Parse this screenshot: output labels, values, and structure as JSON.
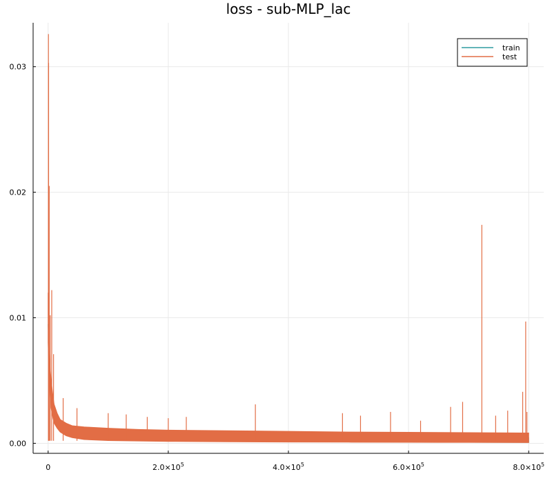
{
  "chart_data": {
    "type": "line",
    "title": "loss - sub-MLP_lac",
    "xlabel": "",
    "ylabel": "",
    "xlim": [
      -25000,
      825000
    ],
    "ylim": [
      -0.0008,
      0.0335
    ],
    "grid": true,
    "legend_position": "top-right",
    "x_ticks": [
      {
        "value": 0,
        "mantissa": "0",
        "exponent": ""
      },
      {
        "value": 200000,
        "mantissa": "2.0×10",
        "exponent": "5"
      },
      {
        "value": 400000,
        "mantissa": "4.0×10",
        "exponent": "5"
      },
      {
        "value": 600000,
        "mantissa": "6.0×10",
        "exponent": "5"
      },
      {
        "value": 800000,
        "mantissa": "8.0×10",
        "exponent": "5"
      }
    ],
    "y_ticks": [
      {
        "value": 0.0,
        "label": "0.00"
      },
      {
        "value": 0.01,
        "label": "0.01"
      },
      {
        "value": 0.02,
        "label": "0.02"
      },
      {
        "value": 0.03,
        "label": "0.03"
      }
    ],
    "series": [
      {
        "name": "train",
        "color": "#2e9ba0",
        "envelope": {
          "x": [
            0,
            2000,
            5000,
            10000,
            20000,
            40000,
            60000,
            100000,
            150000,
            200000,
            300000,
            400000,
            500000,
            600000,
            700000,
            800000
          ],
          "low": [
            0.0095,
            0.0055,
            0.003,
            0.0018,
            0.001,
            0.0006,
            0.00045,
            0.0003,
            0.00025,
            0.00022,
            0.00018,
            0.00015,
            0.00012,
            0.0001,
            8e-05,
            7e-05
          ],
          "high": [
            0.0095,
            0.0065,
            0.004,
            0.0025,
            0.0015,
            0.0011,
            0.001,
            0.0009,
            0.0008,
            0.00075,
            0.0007,
            0.00065,
            0.0006,
            0.00055,
            0.0005,
            0.00045
          ]
        },
        "spikes": []
      },
      {
        "name": "test",
        "color": "#e26d45",
        "envelope": {
          "x": [
            0,
            1000,
            2000,
            3000,
            5000,
            8000,
            10000,
            15000,
            20000,
            30000,
            40000,
            60000,
            100000,
            150000,
            200000,
            300000,
            400000,
            500000,
            600000,
            700000,
            800000
          ],
          "low": [
            0.008,
            0.0065,
            0.005,
            0.004,
            0.0028,
            0.002,
            0.0016,
            0.0012,
            0.0009,
            0.0006,
            0.00045,
            0.0003,
            0.00022,
            0.00018,
            0.00015,
            0.00012,
            0.0001,
            9e-05,
            8e-05,
            7e-05,
            6e-05
          ],
          "high": [
            0.012,
            0.0085,
            0.0072,
            0.0062,
            0.005,
            0.0038,
            0.0031,
            0.0024,
            0.0019,
            0.0016,
            0.0014,
            0.0013,
            0.0012,
            0.0011,
            0.00105,
            0.001,
            0.00095,
            0.0009,
            0.00088,
            0.00085,
            0.00082
          ]
        },
        "spikes": [
          {
            "x": 500,
            "y": 0.0326
          },
          {
            "x": 800,
            "y": 0.0303
          },
          {
            "x": 1800,
            "y": 0.0205
          },
          {
            "x": 3500,
            "y": 0.0102
          },
          {
            "x": 6000,
            "y": 0.0122
          },
          {
            "x": 9000,
            "y": 0.0071
          },
          {
            "x": 25000,
            "y": 0.0036
          },
          {
            "x": 48000,
            "y": 0.0028
          },
          {
            "x": 100000,
            "y": 0.0024
          },
          {
            "x": 130000,
            "y": 0.0023
          },
          {
            "x": 165000,
            "y": 0.0021
          },
          {
            "x": 200000,
            "y": 0.002
          },
          {
            "x": 230000,
            "y": 0.0021
          },
          {
            "x": 345000,
            "y": 0.0031
          },
          {
            "x": 490000,
            "y": 0.0024
          },
          {
            "x": 520000,
            "y": 0.0022
          },
          {
            "x": 570000,
            "y": 0.0025
          },
          {
            "x": 620000,
            "y": 0.0018
          },
          {
            "x": 670000,
            "y": 0.0029
          },
          {
            "x": 690000,
            "y": 0.0033
          },
          {
            "x": 722000,
            "y": 0.0174
          },
          {
            "x": 745000,
            "y": 0.0022
          },
          {
            "x": 765000,
            "y": 0.0026
          },
          {
            "x": 790000,
            "y": 0.0041
          },
          {
            "x": 795000,
            "y": 0.0097
          },
          {
            "x": 797000,
            "y": 0.0025
          }
        ]
      }
    ]
  }
}
